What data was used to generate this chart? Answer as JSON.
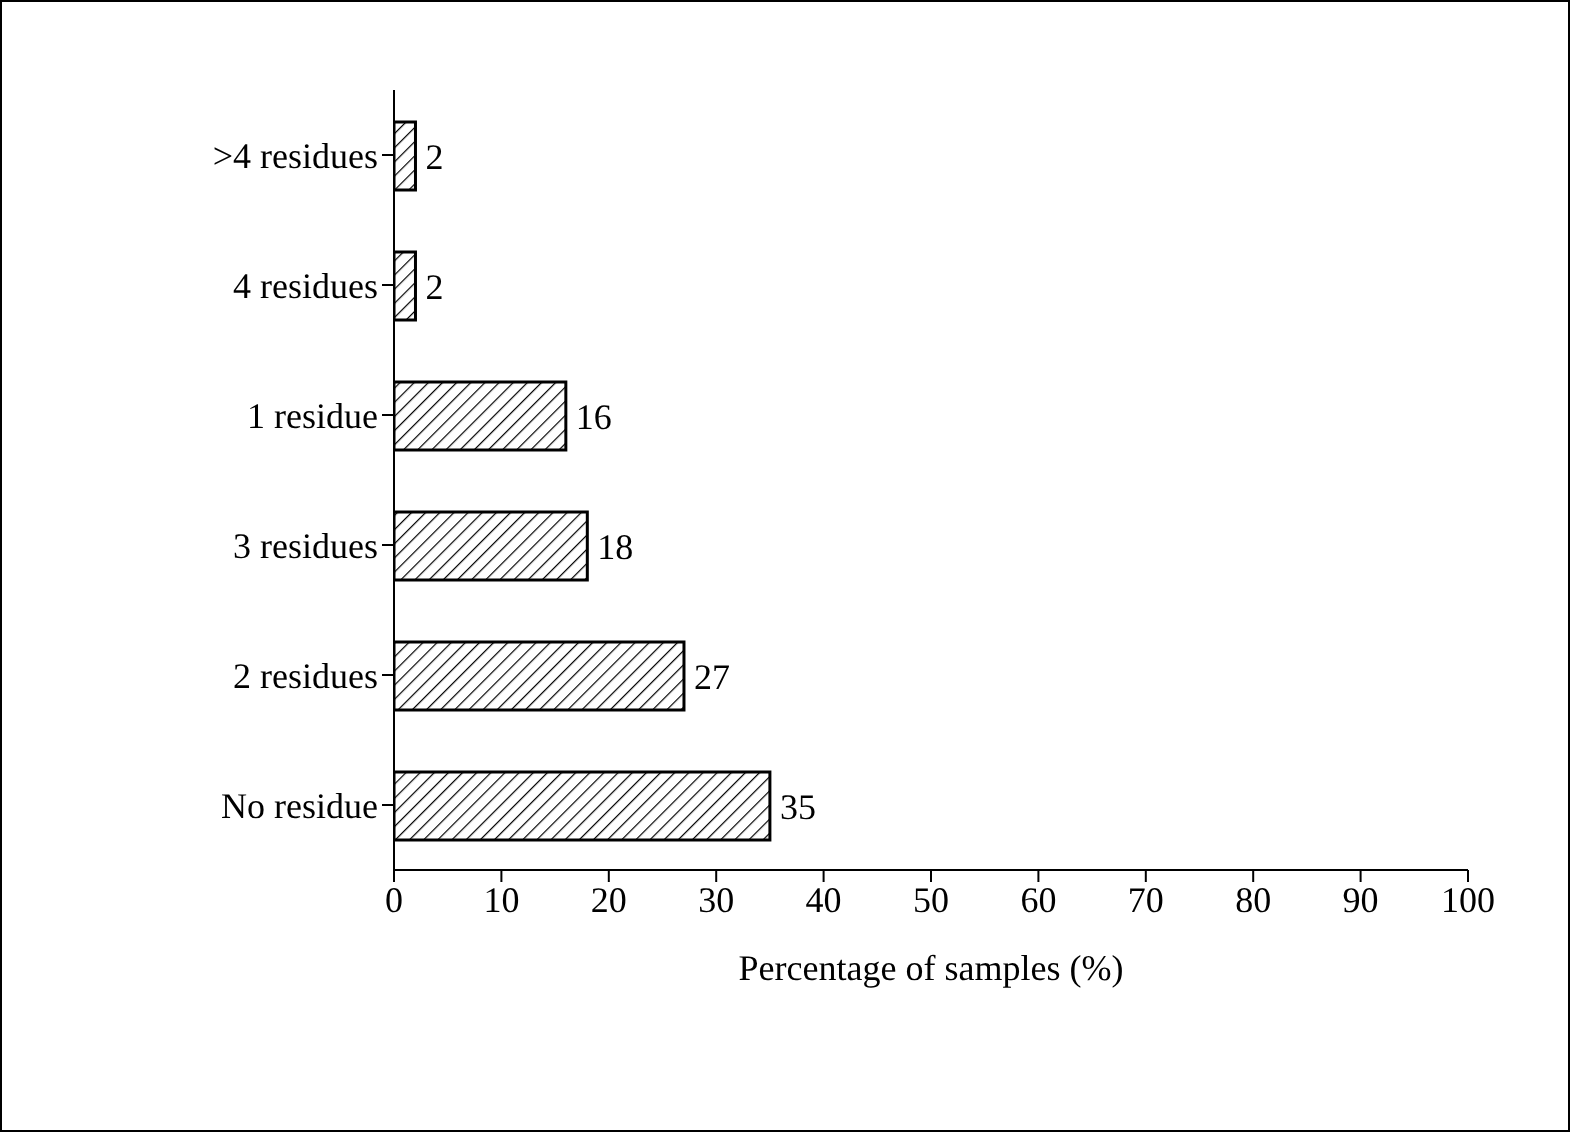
{
  "chart_data": {
    "type": "bar",
    "orientation": "horizontal",
    "categories": [
      ">4 residues",
      "4 residues",
      "1 residue",
      "3 residues",
      "2 residues",
      "No residue"
    ],
    "values": [
      2,
      2,
      16,
      18,
      27,
      35
    ],
    "color": "#000000",
    "xlabel": "Percentage of samples (%)",
    "xlim": [
      0,
      100
    ],
    "xticks": [
      0,
      10,
      20,
      30,
      40,
      50,
      60,
      70,
      80,
      90,
      100
    ],
    "data_labels": true
  }
}
